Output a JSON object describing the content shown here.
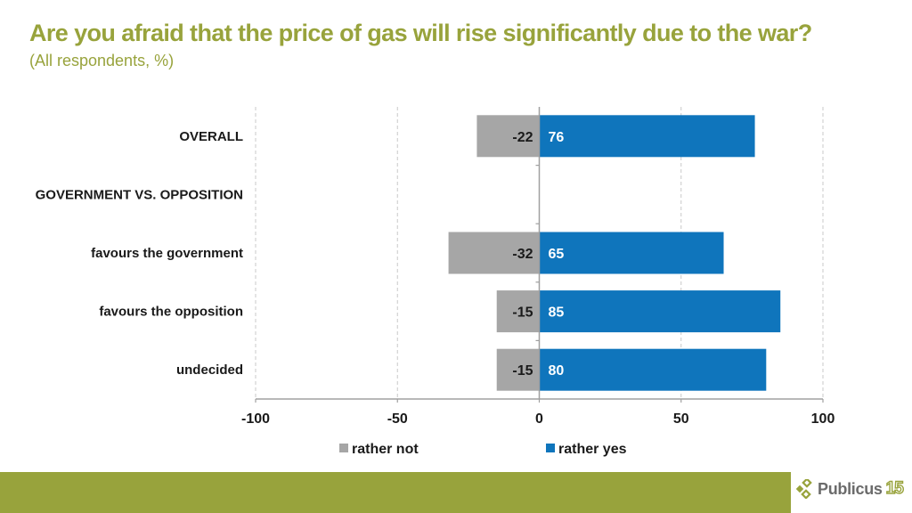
{
  "header": {
    "title": "Are you afraid that the price of gas will rise significantly due to the war?",
    "subtitle": "(All respondents, %)"
  },
  "colors": {
    "brand_green": "#98a33c",
    "rather_not": "#a6a6a6",
    "rather_yes": "#0f75bc"
  },
  "chart_data": {
    "type": "bar",
    "orientation": "horizontal-diverging",
    "title": "Are you afraid that the price of gas will rise significantly due to the war?",
    "subtitle": "(All respondents, %)",
    "categories": [
      "OVERALL",
      "GOVERNMENT VS. OPPOSITION",
      "favours the government",
      "favours the opposition",
      "undecided"
    ],
    "category_is_header": [
      true,
      true,
      false,
      false,
      false
    ],
    "series": [
      {
        "name": "rather not",
        "color": "#a6a6a6",
        "values": [
          -22,
          null,
          -32,
          -15,
          -15
        ]
      },
      {
        "name": "rather yes",
        "color": "#0f75bc",
        "values": [
          76,
          null,
          65,
          85,
          80
        ]
      }
    ],
    "xlim": [
      -100,
      100
    ],
    "xticks": [
      -100,
      -50,
      0,
      50,
      100
    ],
    "xtick_labels": [
      "-100",
      "-50",
      "0",
      "50",
      "100"
    ],
    "grid": "vertical dashed",
    "legend": {
      "position": "bottom",
      "entries": [
        "rather not",
        "rather yes"
      ]
    }
  },
  "footer": {
    "logo_text": "Publicus",
    "logo_number": "15"
  }
}
